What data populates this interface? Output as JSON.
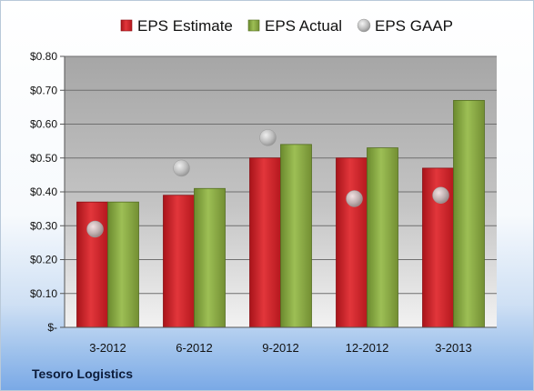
{
  "chart_data": {
    "type": "bar",
    "categories": [
      "3-2012",
      "6-2012",
      "9-2012",
      "12-2012",
      "3-2013"
    ],
    "series": [
      {
        "name": "EPS Estimate",
        "kind": "bar",
        "color": "#d42026",
        "values": [
          0.37,
          0.39,
          0.5,
          0.5,
          0.47
        ]
      },
      {
        "name": "EPS Actual",
        "kind": "bar",
        "color": "#8aac44",
        "values": [
          0.37,
          0.41,
          0.54,
          0.53,
          0.67
        ]
      },
      {
        "name": "EPS GAAP",
        "kind": "scatter",
        "color": "#b8b8b8",
        "values": [
          0.29,
          0.47,
          0.56,
          0.38,
          0.39
        ]
      }
    ],
    "ylim": [
      0,
      0.8
    ],
    "yticks": [
      0,
      0.1,
      0.2,
      0.3,
      0.4,
      0.5,
      0.6,
      0.7,
      0.8
    ],
    "ytick_labels": [
      "$-",
      "$0.10",
      "$0.20",
      "$0.30",
      "$0.40",
      "$0.50",
      "$0.60",
      "$0.70",
      "$0.80"
    ],
    "grid": true,
    "legend_position": "top"
  },
  "footer": {
    "company": "Tesoro Logistics"
  }
}
